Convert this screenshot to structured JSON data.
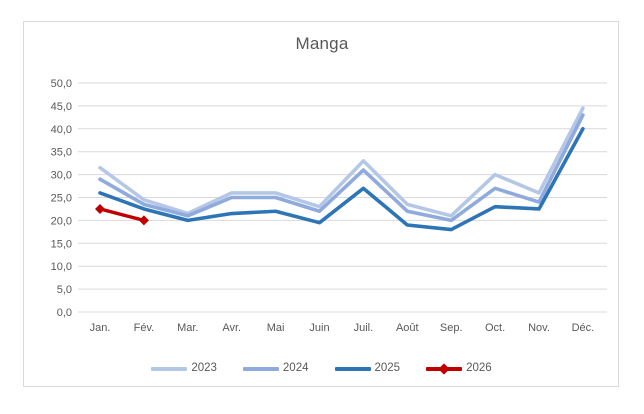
{
  "chart_data": {
    "type": "line",
    "title": "Manga",
    "xlabel": "",
    "ylabel": "",
    "categories": [
      "Jan.",
      "Fév.",
      "Mar.",
      "Avr.",
      "Mai",
      "Juin",
      "Juil.",
      "Août",
      "Sep.",
      "Oct.",
      "Nov.",
      "Déc."
    ],
    "series": [
      {
        "name": "2023",
        "color": "#b4c7e7",
        "marker": "none",
        "values": [
          31.5,
          24.5,
          21.5,
          26,
          26,
          23,
          33,
          23.5,
          21,
          30,
          26,
          44.5
        ]
      },
      {
        "name": "2024",
        "color": "#8faadc",
        "marker": "none",
        "values": [
          29,
          23.5,
          21,
          25,
          25,
          22,
          31,
          22,
          20,
          27,
          24,
          43
        ]
      },
      {
        "name": "2025",
        "color": "#2e75b6",
        "marker": "none",
        "values": [
          26,
          22.5,
          20,
          21.5,
          22,
          19.5,
          27,
          19,
          18,
          23,
          22.5,
          40
        ]
      },
      {
        "name": "2026",
        "color": "#c00000",
        "marker": "diamond",
        "values": [
          22.5,
          20,
          null,
          null,
          null,
          null,
          null,
          null,
          null,
          null,
          null,
          null
        ]
      }
    ],
    "ylim": [
      0,
      50
    ],
    "ytick_step": 5,
    "ytick_labels": [
      "0,0",
      "5,0",
      "10,0",
      "15,0",
      "20,0",
      "25,0",
      "30,0",
      "35,0",
      "40,0",
      "45,0",
      "50,0"
    ],
    "grid": true,
    "legend_position": "bottom"
  },
  "colors": {
    "grid": "#d9d9d9",
    "frame_border": "#d9d9d9",
    "text": "#595959",
    "background": "#ffffff"
  }
}
